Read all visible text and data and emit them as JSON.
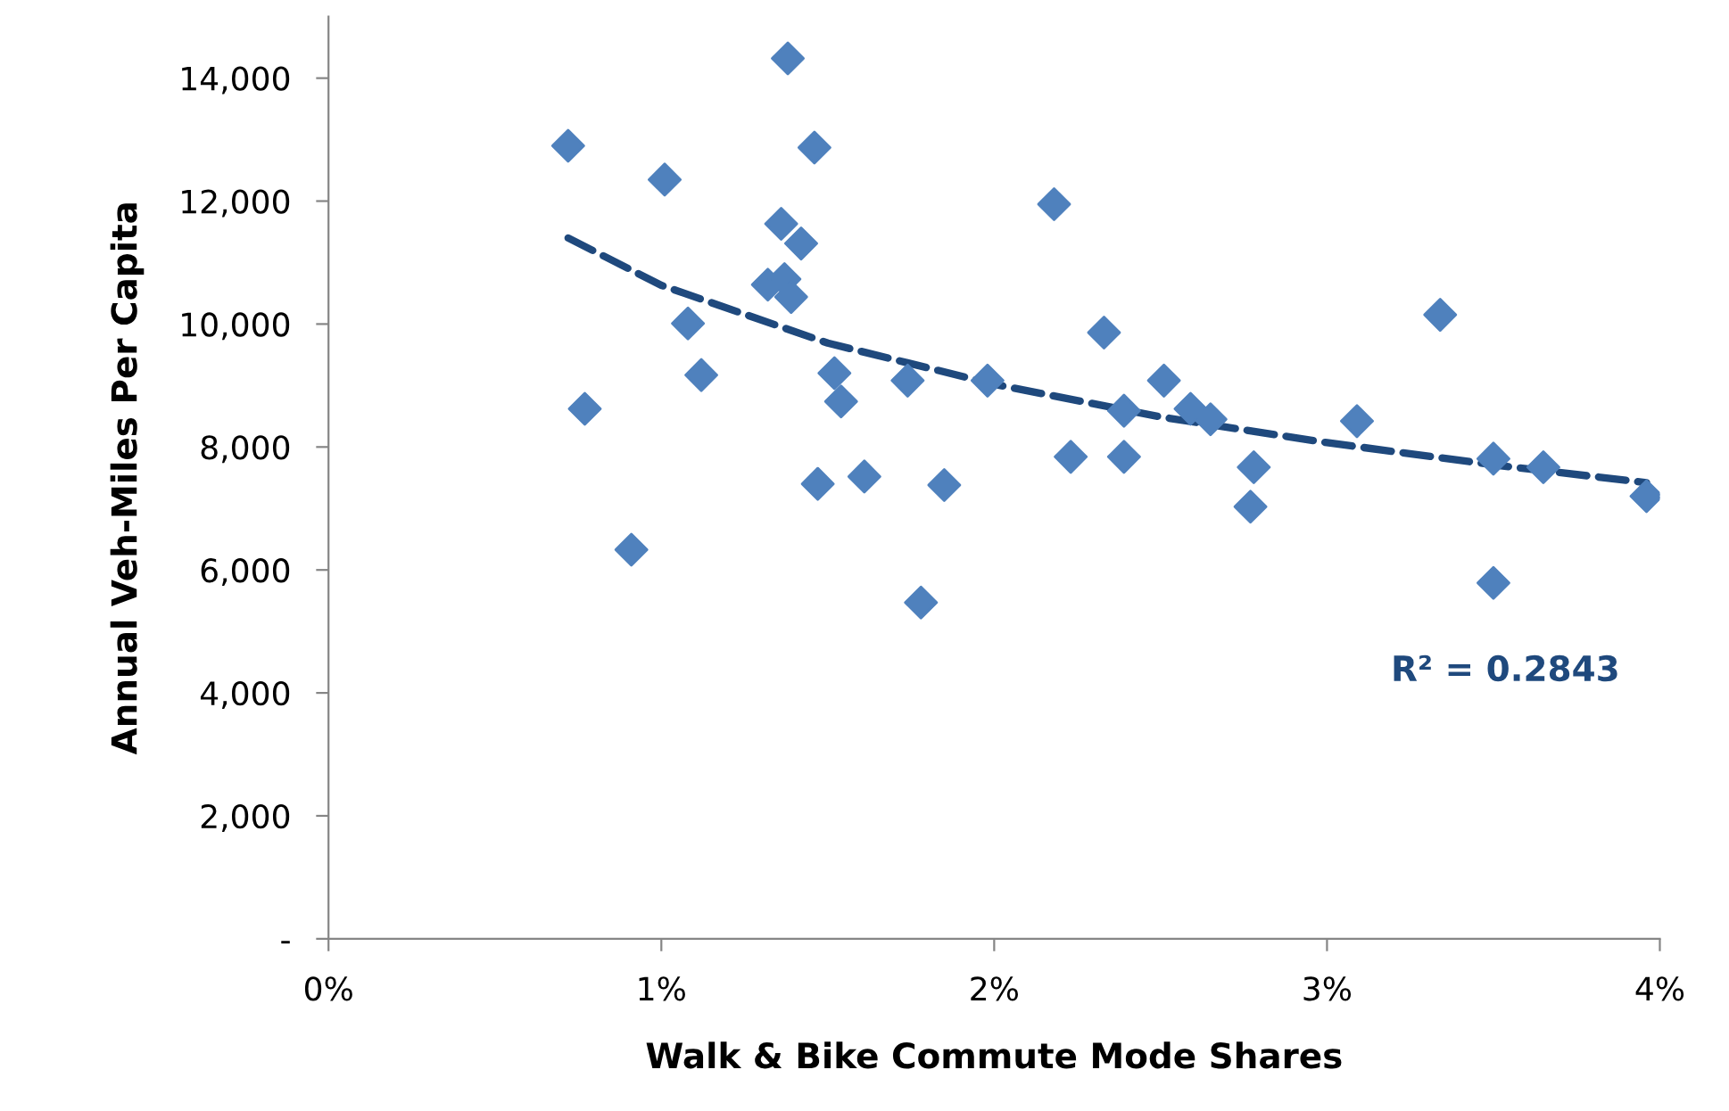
{
  "chart_data": {
    "type": "scatter",
    "xlabel": "Walk & Bike Commute Mode Shares",
    "ylabel": "Annual Veh-Miles Per Capita",
    "xlim": [
      0,
      4
    ],
    "xticks": [
      {
        "value": 0,
        "label": "0%"
      },
      {
        "value": 1,
        "label": "1%"
      },
      {
        "value": 2,
        "label": "2%"
      },
      {
        "value": 3,
        "label": "3%"
      },
      {
        "value": 4,
        "label": "4%"
      }
    ],
    "ylim": [
      0,
      15000
    ],
    "yticks": [
      {
        "value": 0,
        "label": "-"
      },
      {
        "value": 2000,
        "label": "2,000"
      },
      {
        "value": 4000,
        "label": "4,000"
      },
      {
        "value": 6000,
        "label": "6,000"
      },
      {
        "value": 8000,
        "label": "8,000"
      },
      {
        "value": 10000,
        "label": "10,000"
      },
      {
        "value": 12000,
        "label": "12,000"
      },
      {
        "value": 14000,
        "label": "14,000"
      }
    ],
    "grid": false,
    "series": [
      {
        "color": "#4f81bd",
        "marker": "diamond",
        "x": [
          0.72,
          0.77,
          0.91,
          1.01,
          1.08,
          1.12,
          1.38,
          1.36,
          1.42,
          1.46,
          1.32,
          1.37,
          1.39,
          1.52,
          1.54,
          1.47,
          1.61,
          1.74,
          1.85,
          1.78,
          1.98,
          2.18,
          2.23,
          2.33,
          2.39,
          2.39,
          2.51,
          2.59,
          2.65,
          2.77,
          2.78,
          3.09,
          3.34,
          3.5,
          3.5,
          3.65,
          3.96
        ],
        "values": [
          12900,
          8620,
          6330,
          12350,
          10010,
          9170,
          14320,
          11630,
          11310,
          12870,
          10640,
          10730,
          10440,
          9200,
          8740,
          7400,
          7520,
          9080,
          7380,
          5470,
          9080,
          11950,
          7840,
          9860,
          8590,
          7840,
          9080,
          8620,
          8450,
          7030,
          7670,
          8420,
          10150,
          7810,
          5790,
          7670,
          7200
        ]
      },
      {
        "type": "line",
        "color": "#1f497d",
        "line_style": "dashed",
        "marker": "none",
        "x": [
          0.72,
          1,
          1.5,
          2,
          2.5,
          3,
          3.5,
          3.96
        ],
        "values": [
          11400,
          10630,
          9690,
          9020,
          8490,
          8070,
          7710,
          7420
        ]
      }
    ],
    "annotations": [
      "R² = 0.2843"
    ]
  }
}
